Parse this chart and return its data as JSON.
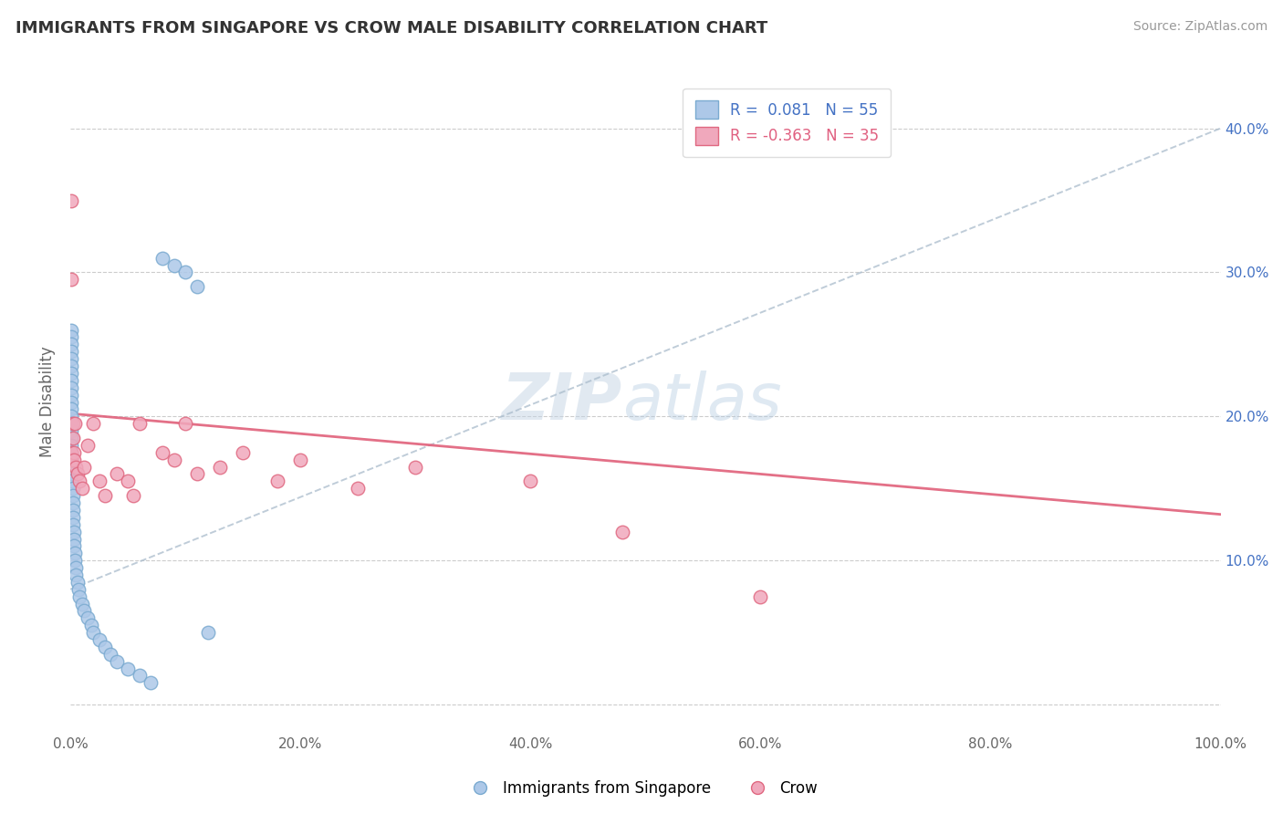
{
  "title": "IMMIGRANTS FROM SINGAPORE VS CROW MALE DISABILITY CORRELATION CHART",
  "source": "Source: ZipAtlas.com",
  "ylabel": "Male Disability",
  "xlim": [
    0.0,
    1.0
  ],
  "ylim": [
    -0.02,
    0.44
  ],
  "xticks": [
    0.0,
    0.2,
    0.4,
    0.6,
    0.8,
    1.0
  ],
  "xtick_labels": [
    "0.0%",
    "20.0%",
    "40.0%",
    "60.0%",
    "80.0%",
    "100.0%"
  ],
  "yticks": [
    0.0,
    0.1,
    0.2,
    0.3,
    0.4
  ],
  "ytick_labels_right": [
    "",
    "10.0%",
    "20.0%",
    "30.0%",
    "40.0%"
  ],
  "legend_r1": "R =  0.081",
  "legend_n1": "N = 55",
  "legend_r2": "R = -0.363",
  "legend_n2": "N = 35",
  "color_blue": "#adc8e8",
  "color_pink": "#f0a8bc",
  "edge_blue": "#7aaad0",
  "edge_pink": "#e06880",
  "trend_blue_color": "#aabccc",
  "trend_pink_color": "#e0607a",
  "scatter_blue_x": [
    0.001,
    0.001,
    0.001,
    0.001,
    0.001,
    0.001,
    0.001,
    0.001,
    0.001,
    0.001,
    0.001,
    0.001,
    0.001,
    0.001,
    0.001,
    0.001,
    0.001,
    0.001,
    0.001,
    0.001,
    0.001,
    0.001,
    0.002,
    0.002,
    0.002,
    0.002,
    0.002,
    0.002,
    0.003,
    0.003,
    0.003,
    0.004,
    0.004,
    0.005,
    0.005,
    0.006,
    0.007,
    0.008,
    0.01,
    0.012,
    0.015,
    0.018,
    0.02,
    0.025,
    0.03,
    0.035,
    0.04,
    0.05,
    0.06,
    0.07,
    0.08,
    0.09,
    0.1,
    0.11,
    0.12
  ],
  "scatter_blue_y": [
    0.26,
    0.255,
    0.25,
    0.245,
    0.24,
    0.235,
    0.23,
    0.225,
    0.22,
    0.215,
    0.21,
    0.205,
    0.2,
    0.195,
    0.19,
    0.185,
    0.18,
    0.175,
    0.17,
    0.165,
    0.16,
    0.155,
    0.15,
    0.145,
    0.14,
    0.135,
    0.13,
    0.125,
    0.12,
    0.115,
    0.11,
    0.105,
    0.1,
    0.095,
    0.09,
    0.085,
    0.08,
    0.075,
    0.07,
    0.065,
    0.06,
    0.055,
    0.05,
    0.045,
    0.04,
    0.035,
    0.03,
    0.025,
    0.02,
    0.015,
    0.31,
    0.305,
    0.3,
    0.29,
    0.05
  ],
  "scatter_pink_x": [
    0.001,
    0.001,
    0.001,
    0.001,
    0.002,
    0.002,
    0.003,
    0.003,
    0.004,
    0.005,
    0.006,
    0.008,
    0.01,
    0.012,
    0.015,
    0.02,
    0.025,
    0.03,
    0.04,
    0.05,
    0.055,
    0.06,
    0.08,
    0.09,
    0.1,
    0.11,
    0.13,
    0.15,
    0.18,
    0.2,
    0.25,
    0.3,
    0.4,
    0.48,
    0.6
  ],
  "scatter_pink_y": [
    0.35,
    0.295,
    0.175,
    0.17,
    0.195,
    0.185,
    0.175,
    0.17,
    0.195,
    0.165,
    0.16,
    0.155,
    0.15,
    0.165,
    0.18,
    0.195,
    0.155,
    0.145,
    0.16,
    0.155,
    0.145,
    0.195,
    0.175,
    0.17,
    0.195,
    0.16,
    0.165,
    0.175,
    0.155,
    0.17,
    0.15,
    0.165,
    0.155,
    0.12,
    0.075
  ],
  "blue_trend_x0": 0.0,
  "blue_trend_y0": 0.08,
  "blue_trend_x1": 1.0,
  "blue_trend_y1": 0.4,
  "pink_trend_x0": 0.0,
  "pink_trend_y0": 0.202,
  "pink_trend_x1": 1.0,
  "pink_trend_y1": 0.132
}
